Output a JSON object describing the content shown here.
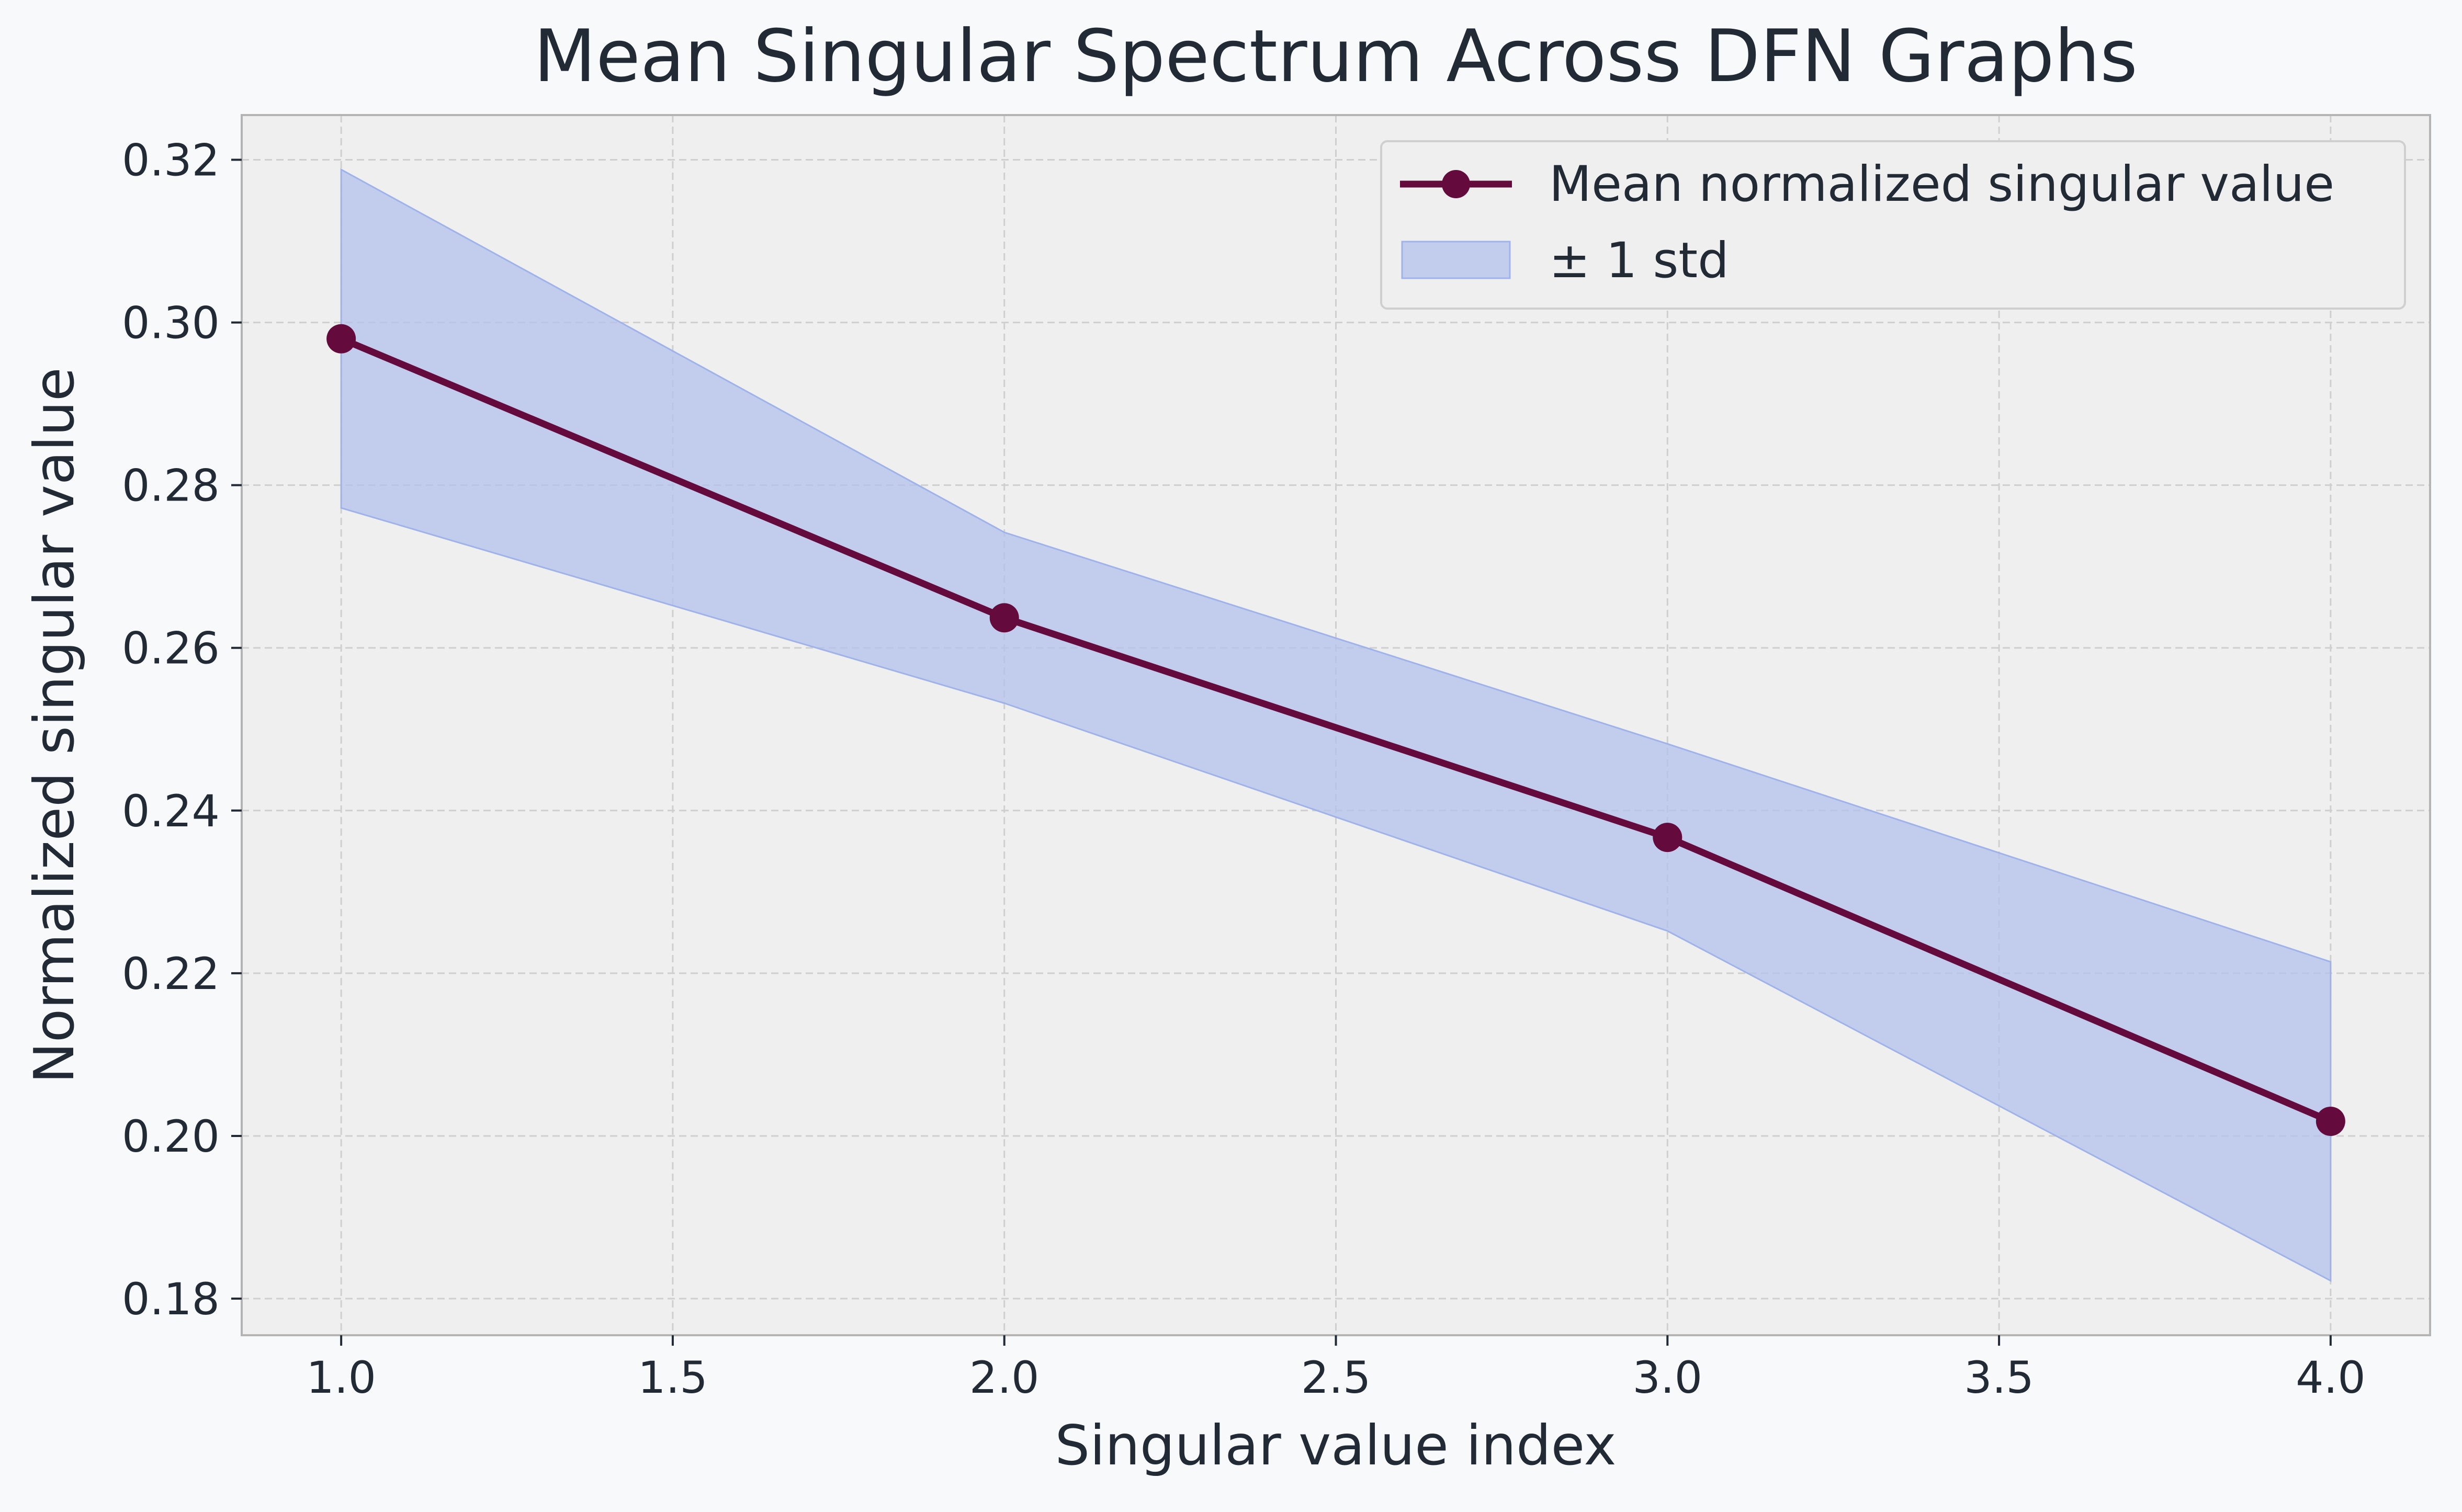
{
  "chart_data": {
    "type": "line",
    "title": "Mean Singular Spectrum Across DFN Graphs",
    "xlabel": "Singular value index",
    "ylabel": "Normalized singular value",
    "xlim": [
      0.85,
      4.15
    ],
    "ylim": [
      0.1755,
      0.3255
    ],
    "xticks": [
      1.0,
      1.5,
      2.0,
      2.5,
      3.0,
      3.5,
      4.0
    ],
    "xtick_labels": [
      "1.0",
      "1.5",
      "2.0",
      "2.5",
      "3.0",
      "3.5",
      "4.0"
    ],
    "yticks": [
      0.18,
      0.2,
      0.22,
      0.24,
      0.26,
      0.28,
      0.3,
      0.32
    ],
    "ytick_labels": [
      "0.18",
      "0.20",
      "0.22",
      "0.24",
      "0.26",
      "0.28",
      "0.30",
      "0.32"
    ],
    "grid": true,
    "legend_position": "top-right",
    "x": [
      1,
      2,
      3,
      4
    ],
    "series": [
      {
        "name": "Mean normalized singular value",
        "values": [
          0.298,
          0.2637,
          0.2367,
          0.2018
        ],
        "color": "#650a3c"
      }
    ],
    "band": {
      "name": "± 1 std",
      "lower": [
        0.2772,
        0.2532,
        0.2252,
        0.1822
      ],
      "upper": [
        0.3188,
        0.2742,
        0.2482,
        0.2214
      ],
      "color": "#b3c2ee"
    },
    "colors": {
      "page_background": "#f7f9fb",
      "plot_background": "#efefef",
      "grid": "#cfcfcf",
      "spine": "#b4b4b4",
      "text": "#222a35"
    }
  }
}
